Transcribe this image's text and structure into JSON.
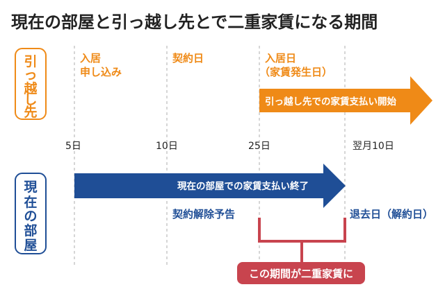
{
  "title": "現在の部屋と引っ越し先とで二重家賃になる期間",
  "lanes": {
    "new_home": {
      "label_chars": [
        "引",
        "っ",
        "越",
        "し",
        "先"
      ],
      "color": "#ef8a17"
    },
    "current_home": {
      "label_chars": [
        "現",
        "在",
        "の",
        "部",
        "屋"
      ],
      "color": "#1f4e96"
    }
  },
  "timeline_ticks": [
    {
      "label": "5日"
    },
    {
      "label": "10日"
    },
    {
      "label": "25日"
    },
    {
      "label": "翌月10日"
    }
  ],
  "new_home_events": {
    "apply": [
      "入居",
      "申し込み"
    ],
    "contract": "契約日",
    "move_in": [
      "入居日",
      "（家賃発生日）"
    ]
  },
  "arrows": {
    "new_rent_start": "引っ越し先での家賃支払い開始",
    "current_rent_end": "現在の部屋での家賃支払い終了"
  },
  "current_home_events": {
    "notice": "契約解除予告",
    "move_out": "退去日（解約日）"
  },
  "overlap_label": "この期間が二重家賃に",
  "colors": {
    "orange": "#ef8a17",
    "blue": "#1f4e96",
    "red": "#c8444e",
    "dash": "#bbbbbb"
  }
}
